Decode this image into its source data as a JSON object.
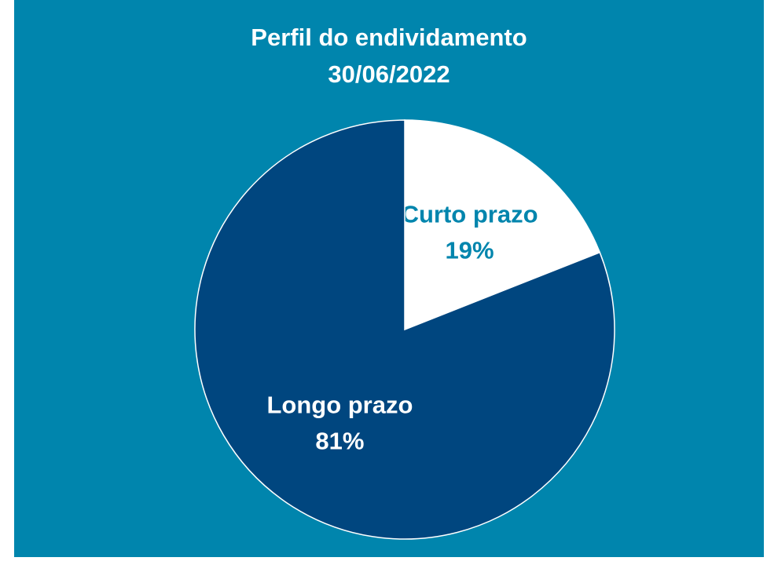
{
  "chart_data": {
    "type": "pie",
    "title": "Perfil do endividamento",
    "subtitle": "30/06/2022",
    "categories": [
      "Curto prazo",
      "Longo prazo"
    ],
    "values": [
      19,
      81
    ],
    "value_labels": [
      "19%",
      "81%"
    ],
    "colors": [
      "#ffffff",
      "#00467f"
    ],
    "label_colors": [
      "#0085ad",
      "#ffffff"
    ],
    "background": "#0085ad"
  }
}
